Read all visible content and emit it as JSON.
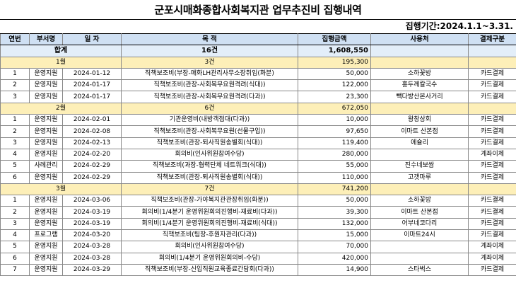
{
  "title": "군포시매화종합사회복지관 업무추진비 집행내역",
  "period": "집행기간:2024.1.1~3.31.",
  "headers": [
    "연번",
    "부서명",
    "일 자",
    "목 적",
    "집행금액",
    "사용처",
    "결제구분"
  ],
  "total": {
    "label": "합계",
    "count": "16건",
    "amount": "1,608,550"
  },
  "groups": [
    {
      "month": "1월",
      "count": "3건",
      "amount": "195,300",
      "rows": [
        {
          "no": "1",
          "dept": "운영지원",
          "date": "2024-01-12",
          "purpose": "직책보조비(부장-매화LH관리사무소장취임(화분)",
          "amount": "50,000",
          "place": "소하꽃방",
          "pay": "카드결제"
        },
        {
          "no": "2",
          "dept": "운영지원",
          "date": "2024-01-17",
          "purpose": "직책보조비(관장-사회복무요원격려(식대))",
          "amount": "122,000",
          "place": "홍두께칼국수",
          "pay": "카드결제"
        },
        {
          "no": "3",
          "dept": "운영지원",
          "date": "2024-01-17",
          "purpose": "직책보조비(관장-사회복무요원격려(다과))",
          "amount": "23,300",
          "place": "빽다방산본사거리",
          "pay": "카드결제"
        }
      ]
    },
    {
      "month": "2월",
      "count": "6건",
      "amount": "672,050",
      "rows": [
        {
          "no": "1",
          "dept": "운영지원",
          "date": "2024-02-01",
          "purpose": "기관운영비(내방객접대(다과))",
          "amount": "10,000",
          "place": "왕창상회",
          "pay": "카드결제"
        },
        {
          "no": "2",
          "dept": "운영지원",
          "date": "2024-02-08",
          "purpose": "직책보조비(관장-사회복무요원(선물구입))",
          "amount": "97,650",
          "place": "이마트 산본점",
          "pay": "카드결제"
        },
        {
          "no": "3",
          "dept": "운영지원",
          "date": "2024-02-13",
          "purpose": "직책보조비(관장-퇴사직원송별회(식대))",
          "amount": "119,400",
          "place": "에슐리",
          "pay": "카드결제"
        },
        {
          "no": "4",
          "dept": "운영지원",
          "date": "2024-02-20",
          "purpose": "회의비(인사위원참여수당)",
          "amount": "280,000",
          "place": "",
          "pay": "계좌이체"
        },
        {
          "no": "5",
          "dept": "사례관리",
          "date": "2024-02-29",
          "purpose": "직책보조비(과장-협력단체 네트워크(식대))",
          "amount": "55,000",
          "place": "진수네보쌈",
          "pay": "카드결제"
        },
        {
          "no": "6",
          "dept": "운영지원",
          "date": "2024-02-29",
          "purpose": "직책보조비(관장-퇴사직원송별회(식대))",
          "amount": "110,000",
          "place": "고갯마루",
          "pay": "카드결제"
        }
      ]
    },
    {
      "month": "3월",
      "count": "7건",
      "amount": "741,200",
      "rows": [
        {
          "no": "1",
          "dept": "운영지원",
          "date": "2024-03-06",
          "purpose": "직책보조비(관장-가야복지관관장취임(화분))",
          "amount": "50,000",
          "place": "소하꽃방",
          "pay": "카드결제"
        },
        {
          "no": "2",
          "dept": "운영지원",
          "date": "2024-03-19",
          "purpose": "회의비(1/4분기 운영위원회의진행비-재료비(다과))",
          "amount": "39,300",
          "place": "이마트 산본점",
          "pay": "카드결제"
        },
        {
          "no": "3",
          "dept": "운영지원",
          "date": "2024-03-19",
          "purpose": "회의비(1/4분기 운영위원회의진행비-재료비(식대))",
          "amount": "132,000",
          "place": "어부네코다리",
          "pay": "카드결제"
        },
        {
          "no": "4",
          "dept": "프로그램",
          "date": "2024-03-20",
          "purpose": "직책보조비(팀장-후원자관리(다과))",
          "amount": "15,000",
          "place": "이마트24시",
          "pay": "카드결제"
        },
        {
          "no": "5",
          "dept": "운영지원",
          "date": "2024-03-28",
          "purpose": "회의비(인사위원참여수당)",
          "amount": "70,000",
          "place": "",
          "pay": "계좌이체"
        },
        {
          "no": "6",
          "dept": "운영지원",
          "date": "2024-03-28",
          "purpose": "회의비(1/4분기 운영위원회의비-수당)",
          "amount": "420,000",
          "place": "",
          "pay": "계좌이체"
        },
        {
          "no": "7",
          "dept": "운영지원",
          "date": "2024-03-29",
          "purpose": "직책보조비(부장-신입직원교육종료간담회(다과))",
          "amount": "14,900",
          "place": "스타벅스",
          "pay": "카드결제"
        }
      ]
    }
  ]
}
